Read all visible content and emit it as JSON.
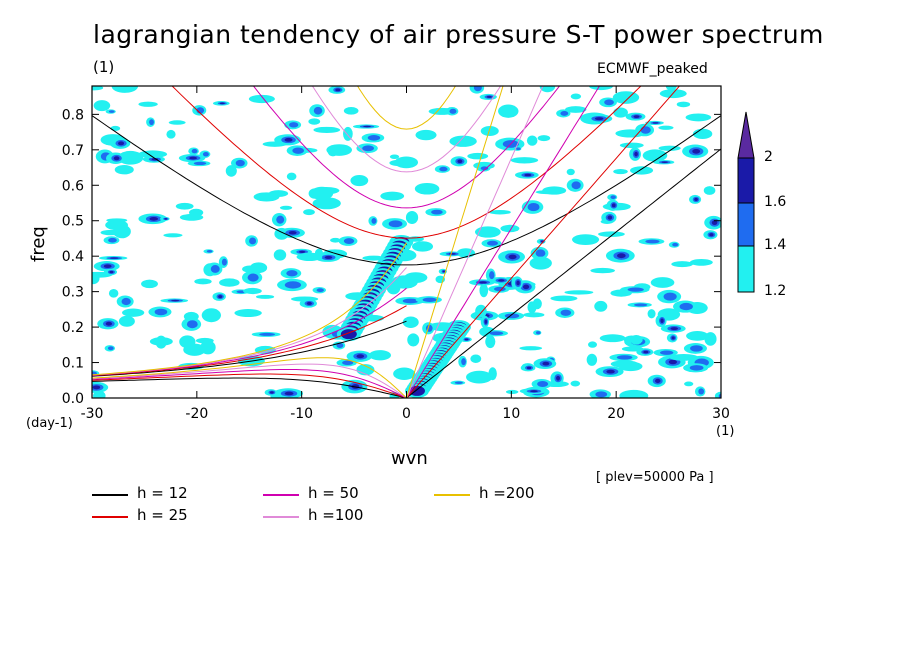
{
  "title": "lagrangian tendency of air pressure S-T power spectrum",
  "units_label": "(1)",
  "model_name": "ECMWF_peaked",
  "plev_note": "[ plev=50000 Pa ]",
  "chart_data": {
    "type": "contour",
    "title": "lagrangian tendency of air pressure S-T power spectrum",
    "xlabel": "wvn",
    "ylabel": "freq",
    "x_unit": "(1)",
    "y_unit": "(day-1)",
    "xlim": [
      -30,
      30
    ],
    "ylim": [
      0,
      0.88
    ],
    "x_ticks": [
      -30,
      -20,
      -10,
      0,
      10,
      20,
      30
    ],
    "x_tick_labels": [
      "-30",
      "-20",
      "-10",
      "0",
      "10",
      "20",
      "30"
    ],
    "y_ticks": [
      0.0,
      0.1,
      0.2,
      0.3,
      0.4,
      0.5,
      0.6,
      0.7,
      0.8
    ],
    "y_tick_labels": [
      "0.0",
      "0.1",
      "0.2",
      "0.3",
      "0.4",
      "0.5",
      "0.6",
      "0.7",
      "0.8"
    ],
    "colorbar": {
      "levels": [
        1.2,
        1.4,
        1.6,
        2
      ],
      "labels": [
        "1.2",
        "1.4",
        "1.6",
        "2"
      ],
      "colors": [
        "#22f0f0",
        "#1f6cf0",
        "#1a1aa8",
        "#5a2aa0"
      ]
    },
    "dispersion_curves": [
      {
        "name": "h = 12",
        "h": 12,
        "color": "#000000"
      },
      {
        "name": "h = 25",
        "h": 25,
        "color": "#e00000"
      },
      {
        "name": "h = 50",
        "h": 50,
        "color": "#d000b0"
      },
      {
        "name": "h =100",
        "h": 100,
        "color": "#e08ad8"
      },
      {
        "name": "h =200",
        "h": 200,
        "color": "#e8c000"
      }
    ],
    "enhanced_regions": [
      {
        "x": [
          -5.5,
          -0.5
        ],
        "y": [
          0.18,
          0.44
        ],
        "level": 2,
        "description": "ridge"
      },
      {
        "x": [
          1,
          5
        ],
        "y": [
          0.02,
          0.2
        ],
        "level": 2,
        "description": "ridge"
      }
    ]
  }
}
